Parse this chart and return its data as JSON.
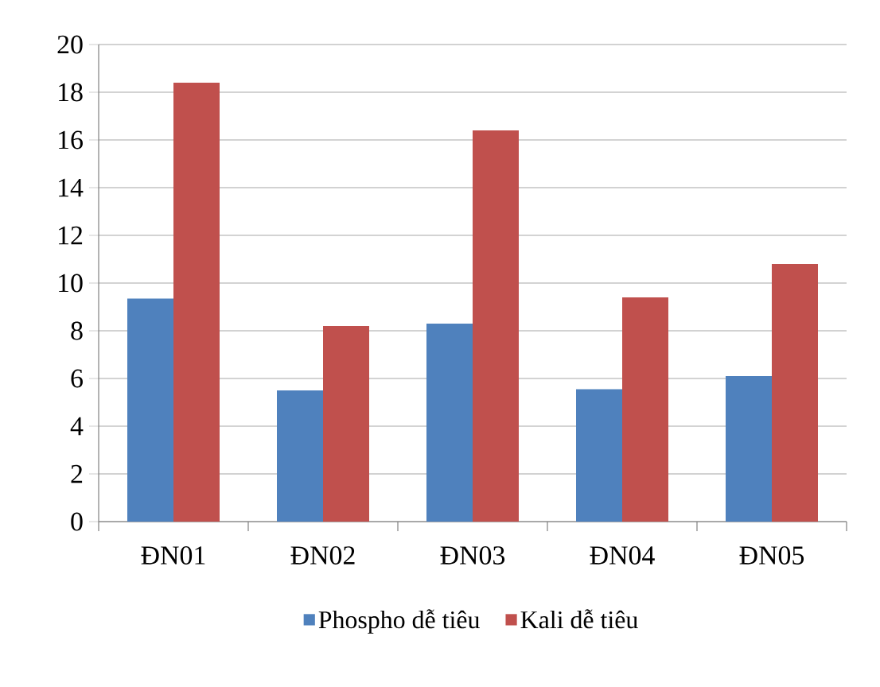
{
  "chart_data": {
    "type": "bar",
    "categories": [
      "ĐN01",
      "ĐN02",
      "ĐN03",
      "ĐN04",
      "ĐN05"
    ],
    "series": [
      {
        "name": "Phospho dễ tiêu",
        "color": "#4f81bd",
        "values": [
          9.35,
          5.5,
          8.3,
          5.55,
          6.1
        ]
      },
      {
        "name": "Kali dễ tiêu",
        "color": "#c0504d",
        "values": [
          18.4,
          8.2,
          16.4,
          9.4,
          10.8
        ]
      }
    ],
    "ylim": [
      0,
      20
    ],
    "yticks": [
      0,
      2,
      4,
      6,
      8,
      10,
      12,
      14,
      16,
      18,
      20
    ],
    "grid": "y",
    "legend": "bottom"
  }
}
